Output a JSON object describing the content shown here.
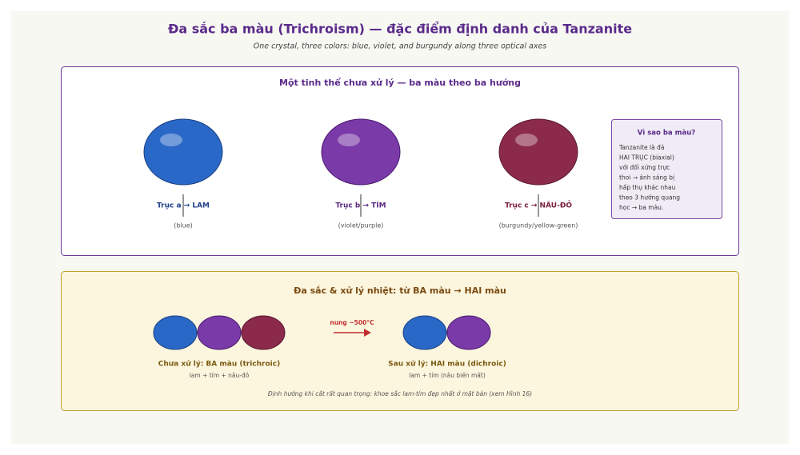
{
  "title": "Đa sắc ba màu (Trichroism) — đặc điểm định danh của Tanzanite",
  "subtitle": "One crystal, three colors: blue, violet, and burgundy along three optical axes",
  "panel_untreated": {
    "heading": "Một tinh thể chưa xử lý — ba màu theo ba hướng",
    "axes": [
      {
        "label": "Trục a → LAM",
        "note": "(blue)"
      },
      {
        "label": "Trục b → TÍM",
        "note": "(violet/purple)"
      },
      {
        "label": "Trục c → NÂU-ĐỎ",
        "note": "(burgundy/yellow-green)"
      }
    ],
    "sidebar": {
      "title": "Vì sao ba màu?",
      "lines": [
        "Tanzanite là đá",
        "HAI TRỤC (biaxial)",
        "với đối xứng trực",
        "thoi → ánh sáng bị",
        "hấp thụ khác nhau",
        "theo 3 hướng quang",
        "học → ba màu."
      ]
    }
  },
  "panel_heat": {
    "heading": "Đa sắc & xử lý nhiệt: từ BA màu → HAI màu",
    "before_label": "Chưa xử lý: BA màu (trichroic)",
    "before_note": "lam + tím + nâu-đỏ",
    "arrow_label": "nung ~500°C",
    "after_label": "Sau xử lý: HAI màu (dichroic)",
    "after_note": "lam + tím (nâu biến mất)",
    "footnote": "Định hướng khi cắt rất quan trọng: khoe sắc lam-tím đẹp nhất ở mặt bàn (xem Hình 16)"
  }
}
